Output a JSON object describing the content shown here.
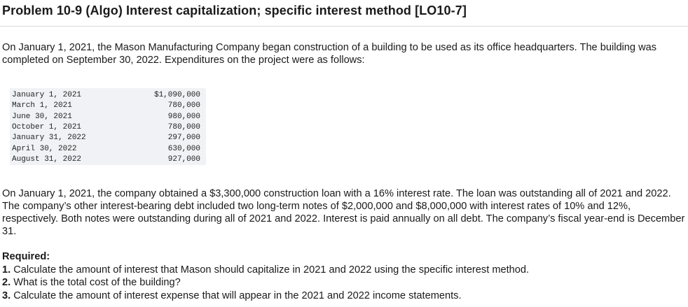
{
  "problem": {
    "title": "Problem 10-9 (Algo) Interest capitalization; specific interest method [LO10-7]",
    "intro": "On January 1, 2021, the Mason Manufacturing Company began construction of a building to be used as its office headquarters. The building was completed on September 30, 2022. Expenditures on the project were as follows:",
    "expenditures": [
      {
        "date": "January 1, 2021",
        "amount": "$1,090,000"
      },
      {
        "date": "March 1, 2021",
        "amount": "780,000"
      },
      {
        "date": "June 30, 2021",
        "amount": "980,000"
      },
      {
        "date": "October 1, 2021",
        "amount": "780,000"
      },
      {
        "date": "January 31, 2022",
        "amount": "297,000"
      },
      {
        "date": "April 30, 2022",
        "amount": "630,000"
      },
      {
        "date": "August 31, 2022",
        "amount": "927,000"
      }
    ],
    "loan_paragraph": "On January 1, 2021, the company obtained a $3,300,000 construction loan with a 16% interest rate. The loan was outstanding all of 2021 and 2022. The company’s other interest-bearing debt included two long-term notes of $2,000,000 and $8,000,000 with interest rates of 10% and 12%, respectively. Both notes were outstanding during all of 2021 and 2022. Interest is paid annually on all debt. The company’s fiscal year-end is December 31.",
    "required": {
      "heading": "Required:",
      "items": [
        {
          "number": "1.",
          "text": "Calculate the amount of interest that Mason should capitalize in 2021 and 2022 using the specific interest method."
        },
        {
          "number": "2.",
          "text": "What is the total cost of the building?"
        },
        {
          "number": "3.",
          "text": "Calculate the amount of interest expense that will appear in the 2021 and 2022 income statements."
        }
      ]
    }
  }
}
